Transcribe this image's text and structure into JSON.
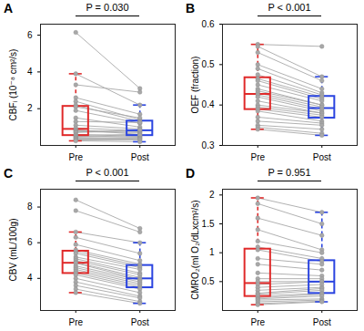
{
  "chart_data": [
    {
      "type": "box",
      "panel": "A",
      "annotation": "P = 0.030",
      "y_label": "CBFᵢ (10⁻⁸ cm²/s)",
      "categories": [
        "Pre",
        "Post"
      ],
      "colors": [
        "#e02a2a",
        "#2a44e0"
      ],
      "values": [
        [
          6.15,
          3.9,
          3.3,
          2.6,
          2.4,
          2.2,
          2.1,
          1.9,
          1.5,
          1.3,
          1.1,
          0.95,
          0.85,
          0.8,
          0.75,
          0.7,
          0.6,
          0.55,
          0.5,
          0.45,
          0.4,
          0.35,
          0.3,
          0.25
        ],
        [
          3.1,
          2.2,
          2.9,
          1.7,
          1.4,
          1.3,
          1.5,
          1.2,
          1.0,
          1.25,
          0.9,
          0.8,
          0.6,
          0.75,
          0.7,
          0.85,
          0.5,
          0.6,
          0.45,
          0.55,
          0.4,
          0.35,
          0.3,
          0.2
        ]
      ],
      "ylim": [
        0,
        6.6
      ],
      "yticks": [
        2,
        4,
        6
      ]
    },
    {
      "type": "box",
      "panel": "B",
      "annotation": "P < 0.001",
      "y_label": "OEF (fraction)",
      "categories": [
        "Pre",
        "Post"
      ],
      "colors": [
        "#e02a2a",
        "#2a44e0"
      ],
      "values": [
        [
          0.55,
          0.545,
          0.53,
          0.5,
          0.49,
          0.475,
          0.465,
          0.46,
          0.45,
          0.44,
          0.435,
          0.43,
          0.425,
          0.42,
          0.41,
          0.4,
          0.395,
          0.39,
          0.385,
          0.37,
          0.36,
          0.35,
          0.345,
          0.34
        ],
        [
          0.545,
          0.47,
          0.46,
          0.44,
          0.43,
          0.425,
          0.42,
          0.415,
          0.41,
          0.4,
          0.4,
          0.395,
          0.39,
          0.385,
          0.38,
          0.38,
          0.375,
          0.37,
          0.36,
          0.355,
          0.35,
          0.34,
          0.33,
          0.325
        ]
      ],
      "ylim": [
        0.3,
        0.6
      ],
      "yticks": [
        0.3,
        0.4,
        0.5,
        0.6
      ]
    },
    {
      "type": "box",
      "panel": "C",
      "annotation": "P < 0.001",
      "y_label": "CBV (mL/100g)",
      "categories": [
        "Pre",
        "Post"
      ],
      "colors": [
        "#e02a2a",
        "#2a44e0"
      ],
      "values": [
        [
          8.4,
          7.8,
          6.6,
          6.3,
          5.9,
          5.6,
          5.5,
          5.4,
          5.2,
          5.1,
          5.0,
          4.9,
          4.85,
          4.7,
          4.6,
          4.5,
          4.4,
          4.3,
          4.2,
          4.0,
          3.8,
          3.6,
          3.4,
          3.2
        ],
        [
          6.8,
          6.6,
          6.0,
          5.4,
          5.0,
          4.8,
          4.7,
          4.6,
          4.5,
          4.3,
          4.2,
          4.05,
          3.95,
          3.9,
          3.8,
          3.7,
          3.6,
          3.5,
          3.4,
          3.2,
          3.0,
          2.9,
          2.7,
          2.6
        ]
      ],
      "ylim": [
        2.2,
        9.0
      ],
      "yticks": [
        4,
        6,
        8
      ]
    },
    {
      "type": "box",
      "panel": "D",
      "annotation": "P = 0.951",
      "y_label": "CMRO₂(ml O₂/dLxcm²/s)",
      "categories": [
        "Pre",
        "Post"
      ],
      "colors": [
        "#e02a2a",
        "#2a44e0"
      ],
      "values": [
        [
          1.95,
          1.85,
          1.6,
          1.4,
          1.2,
          1.1,
          1.05,
          0.9,
          0.8,
          0.65,
          0.55,
          0.5,
          0.45,
          0.4,
          0.35,
          0.3,
          0.28,
          0.25,
          0.22,
          0.2,
          0.18,
          0.15,
          0.12,
          0.1
        ],
        [
          1.7,
          1.5,
          1.3,
          1.05,
          1.0,
          0.9,
          0.85,
          0.8,
          0.7,
          0.6,
          0.55,
          0.5,
          0.5,
          0.45,
          0.4,
          0.38,
          0.35,
          0.3,
          0.28,
          0.25,
          0.2,
          0.18,
          0.16,
          0.15
        ]
      ],
      "ylim": [
        0,
        2.1
      ],
      "yticks": [
        0.5,
        1,
        1.5,
        2
      ]
    }
  ]
}
